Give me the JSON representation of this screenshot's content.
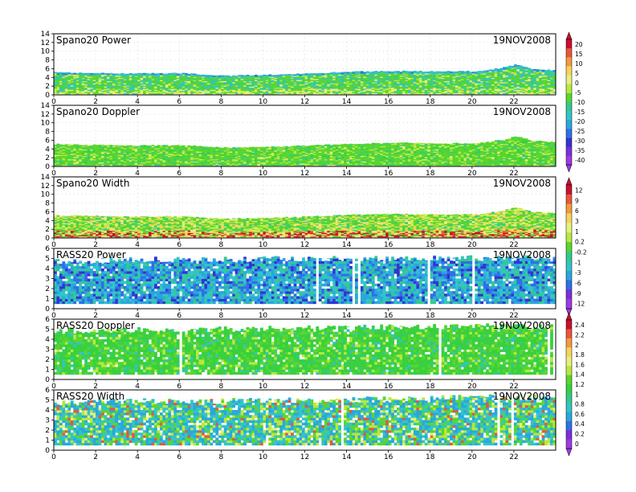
{
  "chart_data": [
    {
      "type": "heatmap",
      "title": "Spano20 Power",
      "date": "19NOV2008",
      "xlim": [
        0,
        24
      ],
      "ylim": [
        0,
        14
      ],
      "xticks": [
        "0",
        "2",
        "4",
        "6",
        "8",
        "10",
        "12",
        "14",
        "16",
        "18",
        "20",
        "22"
      ],
      "yticks": [
        "0",
        "2",
        "4",
        "6",
        "8",
        "10",
        "12",
        "14"
      ],
      "grid": true,
      "height_top": [
        [
          0,
          5.2
        ],
        [
          2,
          5.0
        ],
        [
          4,
          4.9
        ],
        [
          6,
          5.0
        ],
        [
          8,
          4.4
        ],
        [
          10,
          4.6
        ],
        [
          12,
          4.9
        ],
        [
          14,
          5.3
        ],
        [
          16,
          5.5
        ],
        [
          18,
          5.4
        ],
        [
          20,
          5.4
        ],
        [
          21.2,
          6.3
        ],
        [
          21.8,
          7.0
        ],
        [
          22.5,
          6.0
        ],
        [
          23.7,
          5.6
        ]
      ],
      "colorbar": {
        "labels": [
          "20",
          "15",
          "10",
          "5",
          "0",
          "-5",
          "-10",
          "-15",
          "-20",
          "-25",
          "-30",
          "-35",
          "-40"
        ]
      }
    },
    {
      "type": "heatmap",
      "title": "Spano20 Doppler",
      "date": "19NOV2008",
      "xlim": [
        0,
        24
      ],
      "ylim": [
        0,
        14
      ],
      "xticks": [
        "0",
        "2",
        "4",
        "6",
        "8",
        "10",
        "12",
        "14",
        "16",
        "18",
        "20",
        "22"
      ],
      "yticks": [
        "0",
        "2",
        "4",
        "6",
        "8",
        "10",
        "12",
        "14"
      ],
      "grid": true,
      "height_top": [
        [
          0,
          5.1
        ],
        [
          2,
          4.9
        ],
        [
          4,
          4.8
        ],
        [
          6,
          4.9
        ],
        [
          8,
          4.3
        ],
        [
          10,
          4.5
        ],
        [
          12,
          4.8
        ],
        [
          14,
          5.2
        ],
        [
          16,
          5.4
        ],
        [
          18,
          5.3
        ],
        [
          20,
          5.3
        ],
        [
          21.2,
          6.2
        ],
        [
          21.8,
          6.9
        ],
        [
          22.5,
          5.9
        ],
        [
          23.7,
          5.5
        ]
      ]
    },
    {
      "type": "heatmap",
      "title": "Spano20 Width",
      "date": "19NOV2008",
      "xlim": [
        0,
        24
      ],
      "ylim": [
        0,
        14
      ],
      "xticks": [
        "0",
        "2",
        "4",
        "6",
        "8",
        "10",
        "12",
        "14",
        "16",
        "18",
        "20",
        "22"
      ],
      "yticks": [
        "0",
        "2",
        "4",
        "6",
        "8",
        "10",
        "12",
        "14"
      ],
      "grid": true,
      "height_top": [
        [
          0,
          5.2
        ],
        [
          2,
          5.0
        ],
        [
          4,
          4.9
        ],
        [
          6,
          5.0
        ],
        [
          8,
          4.4
        ],
        [
          10,
          4.6
        ],
        [
          12,
          4.9
        ],
        [
          14,
          5.3
        ],
        [
          16,
          5.5
        ],
        [
          18,
          5.4
        ],
        [
          20,
          5.4
        ],
        [
          21.2,
          6.3
        ],
        [
          21.8,
          7.0
        ],
        [
          22.5,
          6.0
        ],
        [
          23.7,
          5.6
        ]
      ],
      "colorbar": {
        "labels": [
          "12",
          "9",
          "6",
          "3",
          "1",
          "0.2",
          "-0.2",
          "-1",
          "-3",
          "-6",
          "-9",
          "-12"
        ]
      }
    },
    {
      "type": "heatmap",
      "title": "RASS20 Power",
      "date": "19NOV2008",
      "xlim": [
        0,
        24
      ],
      "ylim": [
        0,
        6
      ],
      "xticks": [
        "0",
        "2",
        "4",
        "6",
        "8",
        "10",
        "12",
        "14",
        "16",
        "18",
        "20",
        "22"
      ],
      "yticks": [
        "0",
        "1",
        "2",
        "3",
        "4",
        "5",
        "6"
      ],
      "grid": true,
      "height_top": [
        [
          0,
          4.7
        ],
        [
          4,
          4.9
        ],
        [
          8,
          4.9
        ],
        [
          12,
          5.0
        ],
        [
          16,
          5.0
        ],
        [
          20,
          5.1
        ],
        [
          23.7,
          5.0
        ]
      ]
    },
    {
      "type": "heatmap",
      "title": "RASS20 Doppler",
      "date": "19NOV2008",
      "xlim": [
        0,
        24
      ],
      "ylim": [
        0,
        6
      ],
      "xticks": [
        "0",
        "2",
        "4",
        "6",
        "8",
        "10",
        "12",
        "14",
        "16",
        "18",
        "20",
        "22"
      ],
      "yticks": [
        "0",
        "1",
        "2",
        "3",
        "4",
        "5",
        "6"
      ],
      "grid": true,
      "height_top": [
        [
          0,
          4.8
        ],
        [
          4,
          5.0
        ],
        [
          8,
          5.0
        ],
        [
          12,
          5.1
        ],
        [
          16,
          5.2
        ],
        [
          20,
          5.3
        ],
        [
          23.7,
          5.2
        ]
      ],
      "colorbar": {
        "labels": [
          "2.4",
          "2.2",
          "2",
          "1.8",
          "1.6",
          "1.4",
          "1.2",
          "1",
          "0.8",
          "0.6",
          "0.4",
          "0.2",
          "0"
        ]
      }
    },
    {
      "type": "heatmap",
      "title": "RASS20 Width",
      "date": "19NOV2008",
      "xlim": [
        0,
        24
      ],
      "ylim": [
        0,
        6
      ],
      "xticks": [
        "0",
        "2",
        "4",
        "6",
        "8",
        "10",
        "12",
        "14",
        "16",
        "18",
        "20",
        "22"
      ],
      "yticks": [
        "0",
        "1",
        "2",
        "3",
        "4",
        "5",
        "6"
      ],
      "grid": true,
      "height_top": [
        [
          0,
          4.7
        ],
        [
          4,
          4.9
        ],
        [
          8,
          4.9
        ],
        [
          12,
          5.0
        ],
        [
          16,
          5.1
        ],
        [
          20,
          5.3
        ],
        [
          23.7,
          5.2
        ]
      ]
    }
  ],
  "palettes": {
    "power": [
      "#ffffff",
      "#c8102e",
      "#e8563c",
      "#f49a3c",
      "#f6d35a",
      "#e6f07a",
      "#b8e83f",
      "#59d62f",
      "#35c98a",
      "#34c4c6",
      "#2aa7dc",
      "#2f6fe8",
      "#3434d0",
      "#7a2fd8",
      "#9d3be0"
    ],
    "width": [
      "#ffffff",
      "#c8102e",
      "#e8563c",
      "#f49a3c",
      "#f6d35a",
      "#e6f07a",
      "#b8e83f",
      "#59d62f",
      "#35c98a",
      "#34c4c6",
      "#2aa7dc",
      "#2f6fe8",
      "#7a2fd8",
      "#9d3be0"
    ],
    "doppler": [
      "#ffffff",
      "#c8102e",
      "#e8563c",
      "#f49a3c",
      "#f6d35a",
      "#e6f07a",
      "#b8e83f",
      "#59d62f",
      "#38d040",
      "#35c98a",
      "#34c4c6",
      "#2aa7dc",
      "#2f6fe8",
      "#7a2fd8",
      "#9d3be0"
    ]
  }
}
